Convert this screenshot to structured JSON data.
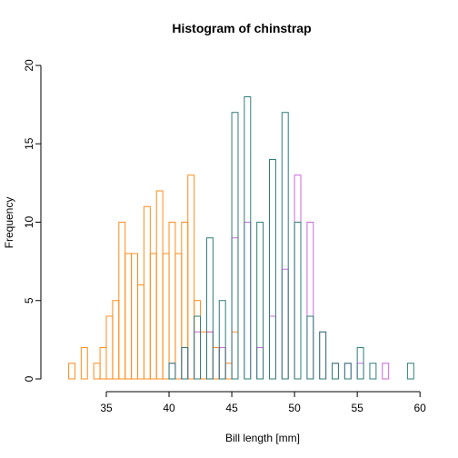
{
  "chart_data": {
    "type": "bar",
    "title": "Histogram of chinstrap",
    "xlabel": "Bill length [mm]",
    "ylabel": "Frequency",
    "xlim": [
      30.8,
      61.0
    ],
    "ylim": [
      0,
      20
    ],
    "xticks": [
      35,
      40,
      45,
      50,
      55,
      60
    ],
    "yticks": [
      0,
      5,
      10,
      15,
      20
    ],
    "bin_width": 1,
    "series": [
      {
        "color": "#FF8C1A",
        "bins": [
          {
            "x0": 32,
            "count": 1
          },
          {
            "x0": 33,
            "count": 2
          },
          {
            "x0": 34,
            "count": 1
          },
          {
            "x0": 34,
            "count": 2
          },
          {
            "x0": 35,
            "count": 4
          },
          {
            "x0": 35,
            "count": 5
          },
          {
            "x0": 36,
            "count": 10
          },
          {
            "x0": 36,
            "count": 8
          },
          {
            "x0": 37,
            "count": 8
          },
          {
            "x0": 37,
            "count": 6
          },
          {
            "x0": 38,
            "count": 11
          },
          {
            "x0": 38,
            "count": 8
          },
          {
            "x0": 39,
            "count": 12
          },
          {
            "x0": 39,
            "count": 8
          },
          {
            "x0": 40,
            "count": 10
          },
          {
            "x0": 40,
            "count": 8
          },
          {
            "x0": 41,
            "count": 10
          },
          {
            "x0": 41,
            "count": 13
          },
          {
            "x0": 42,
            "count": 5
          },
          {
            "x0": 42,
            "count": 3
          },
          {
            "x0": 43,
            "count": 3
          },
          {
            "x0": 43,
            "count": 2
          },
          {
            "x0": 44,
            "count": 2
          },
          {
            "x0": 44,
            "count": 1
          },
          {
            "x0": 45,
            "count": 3
          }
        ]
      },
      {
        "color": "#CC66DD",
        "bins": [
          {
            "x0": 40,
            "count": 1
          },
          {
            "x0": 41,
            "count": 2
          },
          {
            "x0": 42,
            "count": 3
          },
          {
            "x0": 43,
            "count": 3
          },
          {
            "x0": 44,
            "count": 2
          },
          {
            "x0": 45,
            "count": 9
          },
          {
            "x0": 46,
            "count": 10
          },
          {
            "x0": 47,
            "count": 2
          },
          {
            "x0": 48,
            "count": 4
          },
          {
            "x0": 49,
            "count": 7
          },
          {
            "x0": 50,
            "count": 13
          },
          {
            "x0": 51,
            "count": 10
          },
          {
            "x0": 52,
            "count": 3
          },
          {
            "x0": 53,
            "count": 1
          },
          {
            "x0": 54,
            "count": 1
          },
          {
            "x0": 55,
            "count": 1
          },
          {
            "x0": 57,
            "count": 1
          }
        ]
      },
      {
        "color": "#2E7D7A",
        "bins": [
          {
            "x0": 40,
            "count": 1
          },
          {
            "x0": 41,
            "count": 2
          },
          {
            "x0": 42,
            "count": 4
          },
          {
            "x0": 43,
            "count": 9
          },
          {
            "x0": 44,
            "count": 5
          },
          {
            "x0": 45,
            "count": 17
          },
          {
            "x0": 46,
            "count": 18
          },
          {
            "x0": 47,
            "count": 10
          },
          {
            "x0": 48,
            "count": 14
          },
          {
            "x0": 49,
            "count": 17
          },
          {
            "x0": 50,
            "count": 10
          },
          {
            "x0": 51,
            "count": 4
          },
          {
            "x0": 52,
            "count": 3
          },
          {
            "x0": 53,
            "count": 1
          },
          {
            "x0": 54,
            "count": 1
          },
          {
            "x0": 55,
            "count": 2
          },
          {
            "x0": 56,
            "count": 1
          },
          {
            "x0": 59,
            "count": 1
          }
        ]
      }
    ],
    "grid": false,
    "legend": "none"
  }
}
